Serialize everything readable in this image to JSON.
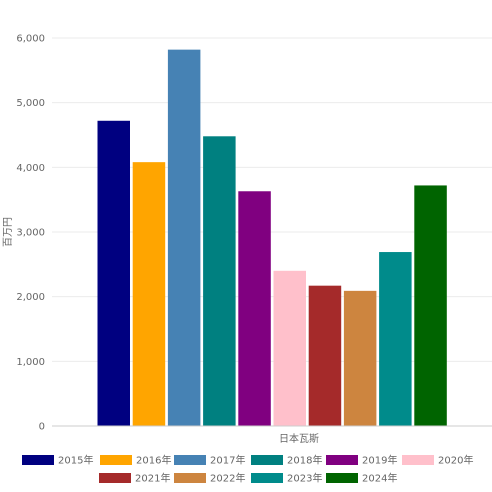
{
  "chart_data": {
    "type": "bar",
    "categories": [
      "日本瓦斯"
    ],
    "xlabel": "日本瓦斯",
    "ylabel": "百万円",
    "ylim": [
      0,
      6000
    ],
    "yticks": [
      0,
      1000,
      2000,
      3000,
      4000,
      5000,
      6000
    ],
    "ytick_labels": [
      "0",
      "1,000",
      "2,000",
      "3,000",
      "4,000",
      "5,000",
      "6,000"
    ],
    "grid": true,
    "legend_position": "bottom",
    "series": [
      {
        "name": "2015年",
        "values": [
          4720
        ],
        "color": "#000080"
      },
      {
        "name": "2016年",
        "values": [
          4080
        ],
        "color": "#ffa500"
      },
      {
        "name": "2017年",
        "values": [
          5820
        ],
        "color": "#4682b4"
      },
      {
        "name": "2018年",
        "values": [
          4480
        ],
        "color": "#008080"
      },
      {
        "name": "2019年",
        "values": [
          3630
        ],
        "color": "#800080"
      },
      {
        "name": "2020年",
        "values": [
          2400
        ],
        "color": "#ffc0cb"
      },
      {
        "name": "2021年",
        "values": [
          2170
        ],
        "color": "#a52a2a"
      },
      {
        "name": "2022年",
        "values": [
          2090
        ],
        "color": "#cd853f"
      },
      {
        "name": "2023年",
        "values": [
          2690
        ],
        "color": "#008b8b"
      },
      {
        "name": "2024年",
        "values": [
          3720
        ],
        "color": "#006400"
      }
    ]
  }
}
